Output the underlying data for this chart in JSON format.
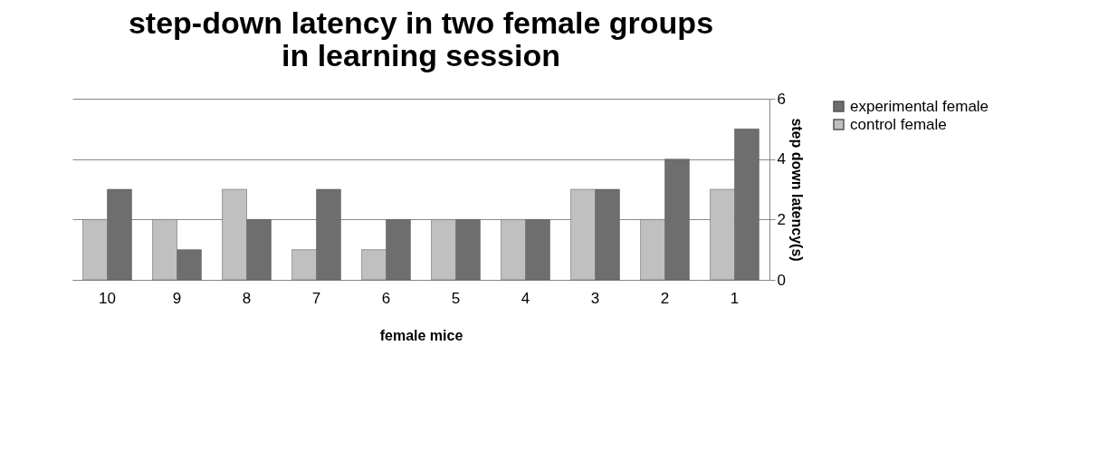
{
  "chart_data": {
    "type": "bar",
    "title": "step-down latency in two female groups in learning   session",
    "xlabel": "female mice",
    "ylabel": "step down latency(s)",
    "categories": [
      "10",
      "9",
      "8",
      "7",
      "6",
      "5",
      "4",
      "3",
      "2",
      "1"
    ],
    "series": [
      {
        "name": "experimental female",
        "color": "#6e6e6e",
        "values": [
          3,
          1,
          2,
          3,
          2,
          2,
          2,
          3,
          4,
          5
        ]
      },
      {
        "name": "control female",
        "color": "#c0c0c0",
        "values": [
          2,
          2,
          3,
          1,
          1,
          2,
          2,
          3,
          2,
          3
        ]
      }
    ],
    "ylim": [
      0,
      6
    ],
    "yticks": [
      0,
      2,
      4,
      6
    ],
    "grid": "y",
    "legend": "right"
  }
}
